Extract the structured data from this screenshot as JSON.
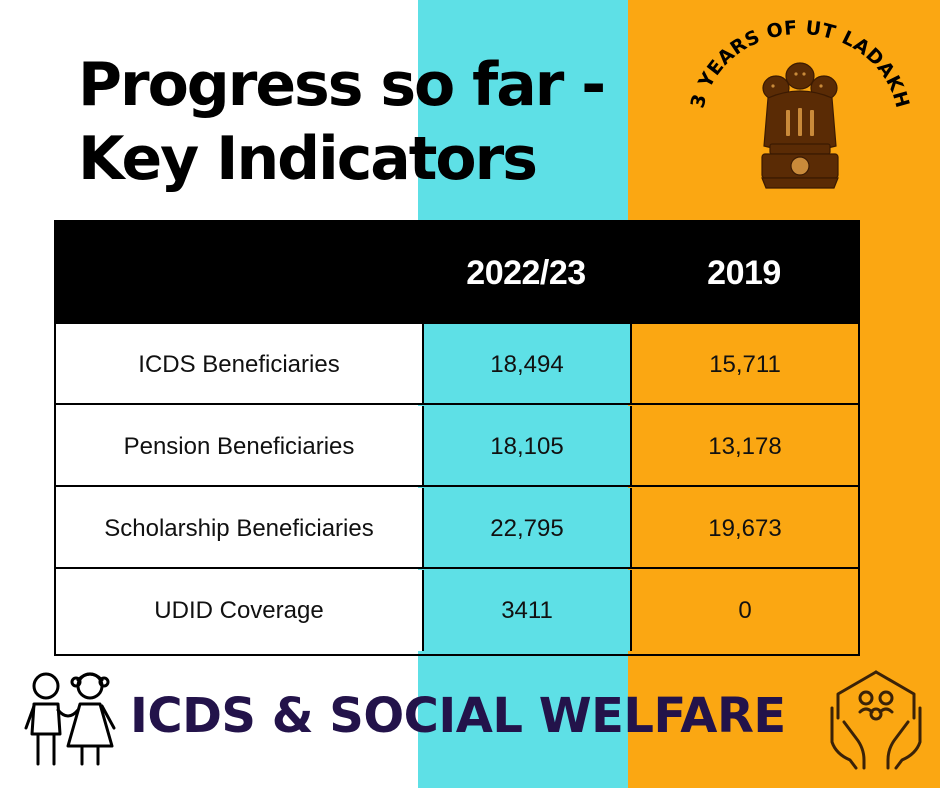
{
  "colors": {
    "cyan_band": "#5ee0e6",
    "orange_band": "#fba712",
    "header_bg": "#000000",
    "footer_text": "#23134a"
  },
  "title": {
    "line1": "Progress so far -",
    "line2": "Key Indicators"
  },
  "badge": {
    "text": "3 YEARS OF UT LADAKH",
    "icon": "national-emblem-icon"
  },
  "table": {
    "columns": [
      "",
      "2022/23",
      "2019"
    ],
    "rows": [
      {
        "label": "ICDS Beneficiaries",
        "current": "18,494",
        "previous": "15,711"
      },
      {
        "label": "Pension Beneficiaries",
        "current": "18,105",
        "previous": "13,178"
      },
      {
        "label": "Scholarship Beneficiaries",
        "current": "22,795",
        "previous": "19,673"
      },
      {
        "label": "UDID Coverage",
        "current": "3411",
        "previous": "0"
      }
    ]
  },
  "footer": {
    "title": "ICDS & SOCIAL WELFARE",
    "left_icon": "children-icon",
    "right_icon": "caring-hands-family-icon"
  }
}
